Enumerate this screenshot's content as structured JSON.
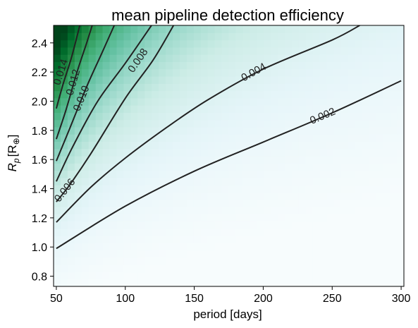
{
  "chart_data": {
    "type": "heatmap",
    "title": "mean pipeline detection efficiency",
    "xlabel": "period [days]",
    "ylabel_base": "R",
    "ylabel_sub": "p",
    "ylabel_unit": "[R",
    "ylabel_unit_sub": "⊕",
    "ylabel_close": "]",
    "xlim": [
      48,
      302
    ],
    "ylim": [
      0.73,
      2.52
    ],
    "xticks": [
      50,
      100,
      150,
      200,
      250,
      300
    ],
    "xtick_labels": [
      "50",
      "100",
      "150",
      "200",
      "250",
      "300"
    ],
    "yticks": [
      0.8,
      1.0,
      1.2,
      1.4,
      1.6,
      1.8,
      2.0,
      2.2,
      2.4
    ],
    "ytick_labels": [
      "0.8",
      "1.0",
      "1.2",
      "1.4",
      "1.6",
      "1.8",
      "2.0",
      "2.2",
      "2.4"
    ],
    "colormap": "BuGn",
    "colormap_low": "#f7fcfd",
    "colormap_high": "#00441b",
    "grid": false,
    "contours": [
      {
        "level": 0.002,
        "label": "0.002",
        "points": [
          [
            50,
            0.99
          ],
          [
            100,
            1.28
          ],
          [
            150,
            1.52
          ],
          [
            200,
            1.72
          ],
          [
            250,
            1.92
          ],
          [
            300,
            2.14
          ]
        ],
        "label_at": [
          243,
          1.9
        ]
      },
      {
        "level": 0.004,
        "label": "0.004",
        "points": [
          [
            50,
            1.17
          ],
          [
            75,
            1.41
          ],
          [
            100,
            1.61
          ],
          [
            130,
            1.82
          ],
          [
            160,
            2.01
          ],
          [
            200,
            2.22
          ],
          [
            250,
            2.42
          ],
          [
            270,
            2.52
          ]
        ],
        "label_at": [
          193,
          2.2
        ]
      },
      {
        "level": 0.006,
        "label": "0.006",
        "points": [
          [
            50,
            1.31
          ],
          [
            60,
            1.43
          ],
          [
            75,
            1.64
          ],
          [
            100,
            2.02
          ],
          [
            120,
            2.28
          ],
          [
            135,
            2.52
          ]
        ],
        "label_at": [
          56,
          1.39
        ]
      },
      {
        "level": 0.008,
        "label": "0.008",
        "points": [
          [
            50,
            1.45
          ],
          [
            62,
            1.69
          ],
          [
            80,
            2.0
          ],
          [
            100,
            2.26
          ],
          [
            119,
            2.52
          ]
        ],
        "label_at": [
          109,
          2.28
        ]
      },
      {
        "level": 0.01,
        "label": "0.010",
        "points": [
          [
            50,
            1.59
          ],
          [
            60,
            1.82
          ],
          [
            72,
            2.1
          ],
          [
            83,
            2.33
          ],
          [
            92,
            2.52
          ]
        ],
        "label_at": [
          68,
          2.02
        ]
      },
      {
        "level": 0.012,
        "label": "0.012",
        "points": [
          [
            50,
            1.74
          ],
          [
            57,
            1.94
          ],
          [
            65,
            2.2
          ],
          [
            72,
            2.4
          ],
          [
            76,
            2.52
          ]
        ],
        "label_at": [
          62,
          2.13
        ]
      },
      {
        "level": 0.014,
        "label": "0.014",
        "points": [
          [
            50,
            1.95
          ],
          [
            55,
            2.12
          ],
          [
            61,
            2.3
          ],
          [
            67,
            2.52
          ]
        ],
        "label_at": [
          53,
          2.2
        ]
      }
    ]
  }
}
